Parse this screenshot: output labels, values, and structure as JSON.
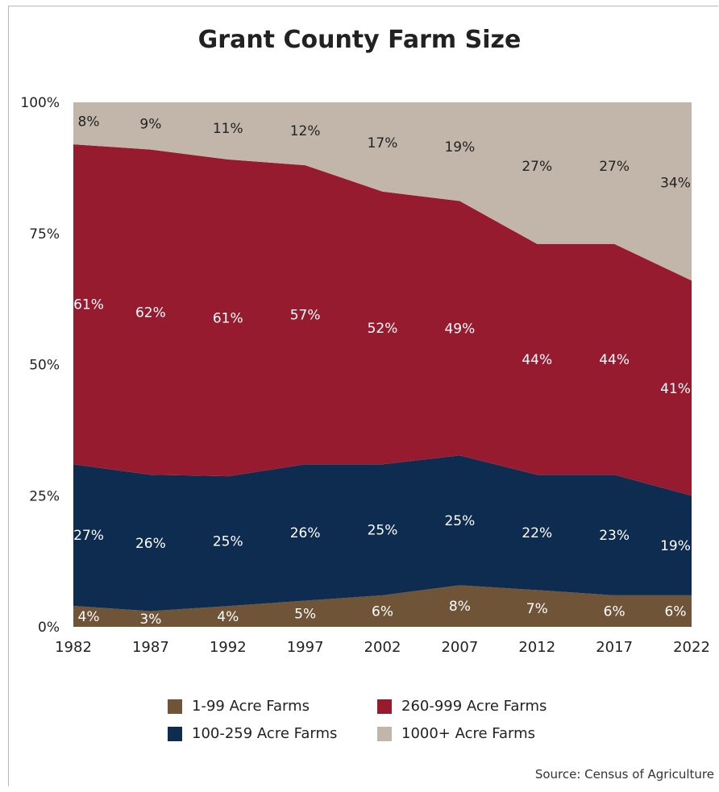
{
  "chart_data": {
    "type": "area",
    "stacked": true,
    "normalized": true,
    "title": "Grant County Farm Size",
    "x": [
      "1982",
      "1987",
      "1992",
      "1997",
      "2002",
      "2007",
      "2012",
      "2017",
      "2022"
    ],
    "y_ticks": [
      "0%",
      "25%",
      "50%",
      "75%",
      "100%"
    ],
    "ylim": [
      0,
      100
    ],
    "legend_position": "bottom",
    "series": [
      {
        "name": "1-99 Acre Farms",
        "color": "#6f5438",
        "values": [
          4,
          3,
          4,
          5,
          6,
          8,
          7,
          6,
          6
        ],
        "labels": [
          "4%",
          "3%",
          "4%",
          "5%",
          "6%",
          "8%",
          "7%",
          "6%",
          "6%"
        ]
      },
      {
        "name": "100-259 Acre Farms",
        "color": "#0e2c4f",
        "values": [
          27,
          26,
          25,
          26,
          25,
          25,
          22,
          23,
          19
        ],
        "labels": [
          "27%",
          "26%",
          "25%",
          "26%",
          "25%",
          "25%",
          "22%",
          "23%",
          "19%"
        ]
      },
      {
        "name": "260-999 Acre Farms",
        "color": "#971b2f",
        "values": [
          61,
          62,
          61,
          57,
          52,
          49,
          44,
          44,
          41
        ],
        "labels": [
          "61%",
          "62%",
          "61%",
          "57%",
          "52%",
          "49%",
          "44%",
          "44%",
          "41%"
        ]
      },
      {
        "name": "1000+ Acre Farms",
        "color": "#c2b6aa",
        "values": [
          8,
          9,
          11,
          12,
          17,
          19,
          27,
          27,
          34
        ],
        "labels": [
          "8%",
          "9%",
          "11%",
          "12%",
          "17%",
          "19%",
          "27%",
          "27%",
          "34%"
        ]
      }
    ],
    "source": "Source: Census of Agriculture"
  }
}
